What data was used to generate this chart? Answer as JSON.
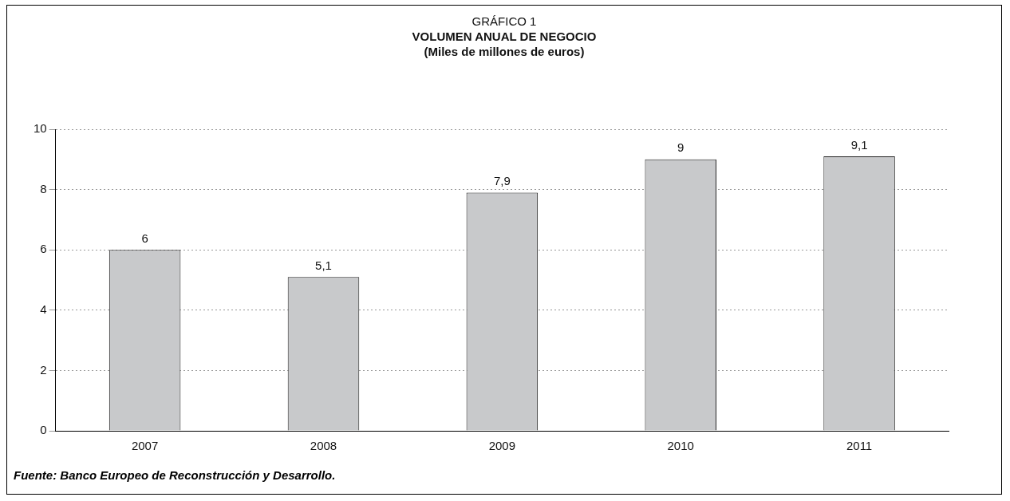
{
  "chart_data": {
    "type": "bar",
    "title": "GRÁFICO 1",
    "subtitle": "VOLUMEN ANUAL DE NEGOCIO",
    "categories": [
      "2007",
      "2008",
      "2009",
      "2010",
      "2011"
    ],
    "values": [
      6,
      5.1,
      7.9,
      9,
      9.1
    ],
    "color": "#c8c9cb",
    "value_labels": [
      "6",
      "5,1",
      "7,9",
      "9",
      "9,1"
    ],
    "ylim": [
      0,
      10
    ],
    "yticks": [
      0,
      2,
      4,
      6,
      8,
      10
    ],
    "grid": "y",
    "annotations": [
      "(Miles de millones de euros)",
      "Fuente:  Banco Europeo de Reconstrucción y Desarrollo."
    ]
  }
}
